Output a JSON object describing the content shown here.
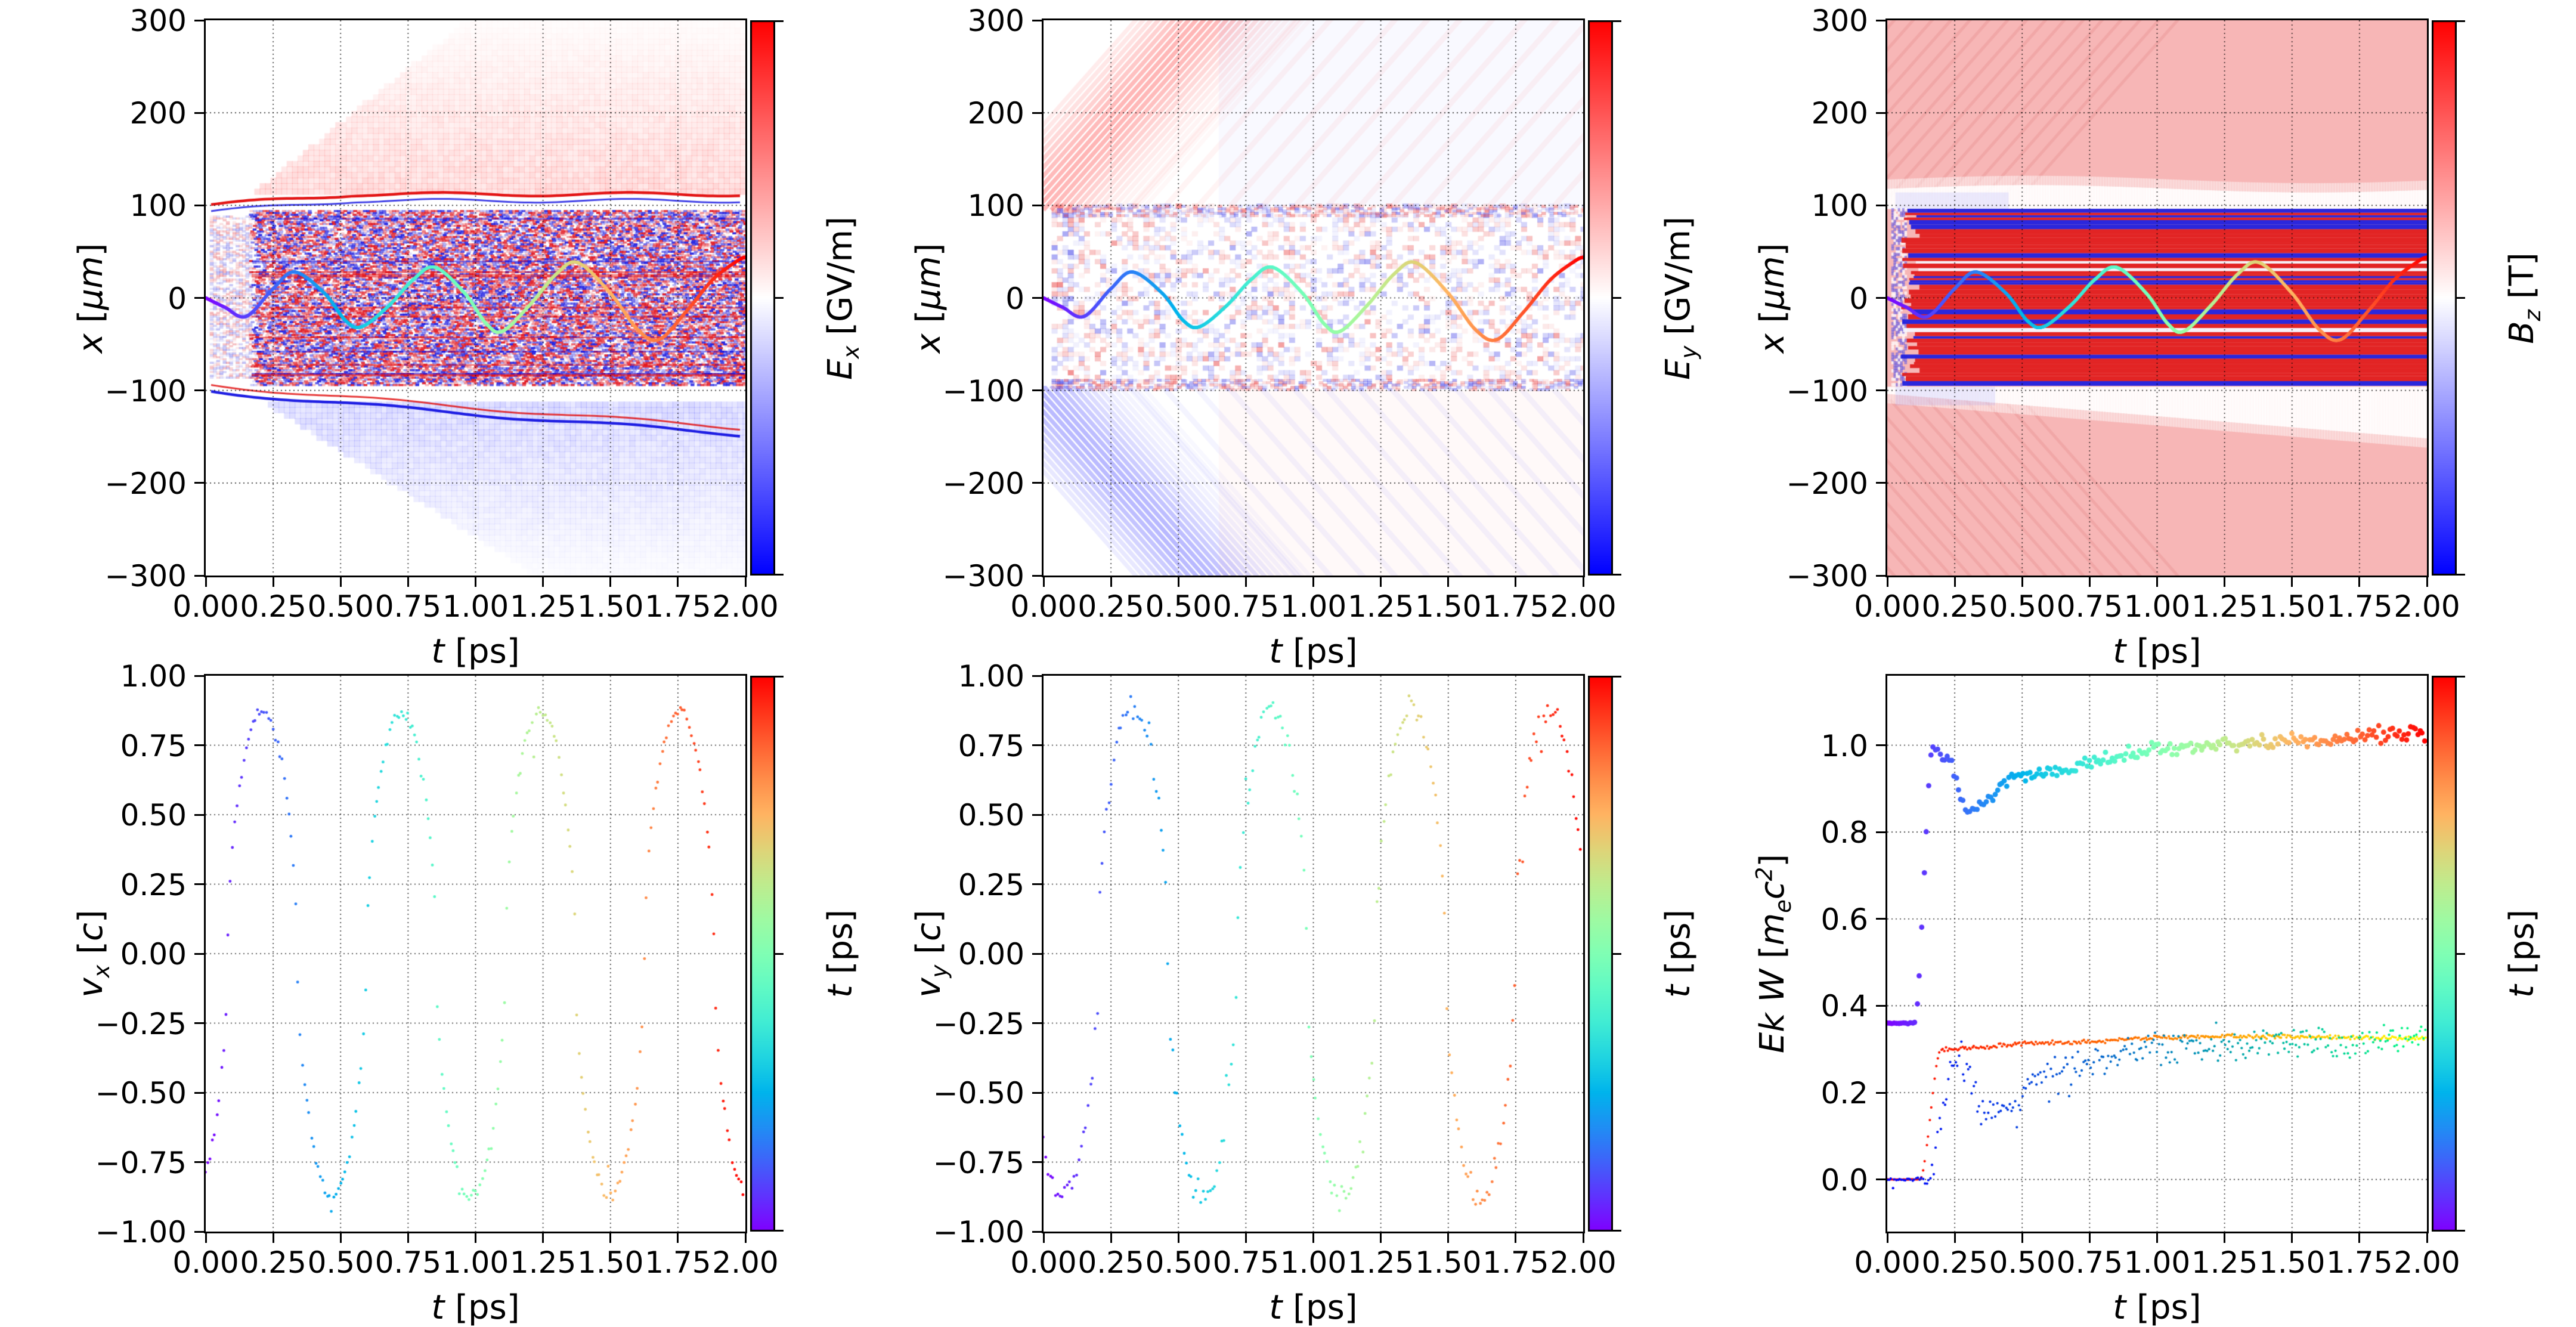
{
  "figure": {
    "kind": "multi-panel particle-in-cell simulation diagnostics figure",
    "background": "#ffffff",
    "layout": "2 rows x 3 columns, each panel with a right-hand colorbar",
    "grid_style": "dotted black gridlines on all panels"
  },
  "colormaps": {
    "bwr": {
      "low": "#0000ff",
      "mid": "#ffffff",
      "high": "#ff0000",
      "used_for": "field maps E_x, E_y, B_z"
    },
    "rainbow": {
      "order": "violet, blue, cyan, pale-green, yellow-green, orange, red",
      "used_for": "time colouring t = 0 to 2 ps"
    },
    "autumn": {
      "low": "#ff0000",
      "high": "#ffff00",
      "used_for": "small-dot Ek series 1"
    },
    "winter": {
      "low": "#0000ff",
      "high": "#00ff80",
      "used_for": "small-dot Ek series 2"
    }
  },
  "shared": {
    "xlabel": "$t$  [ps]",
    "xlim": [
      0,
      2
    ],
    "xticks": {
      "values": [
        0,
        0.25,
        0.5,
        0.75,
        1.0,
        1.25,
        1.5,
        1.75,
        2.0
      ],
      "labels": [
        "0.00",
        "0.25",
        "0.50",
        "0.75",
        "1.00",
        "1.25",
        "1.50",
        "1.75",
        "2.00"
      ]
    },
    "trajectory": {
      "description": "tracked electron transverse position x(t), polyline coloured by rainbow(t/2)",
      "t_ps": [
        0,
        0.07,
        0.15,
        0.25,
        0.33,
        0.44,
        0.52,
        0.58,
        0.68,
        0.77,
        0.85,
        0.96,
        1.04,
        1.1,
        1.2,
        1.3,
        1.38,
        1.5,
        1.6,
        1.68,
        1.78,
        1.88,
        1.97,
        2.0
      ],
      "x_um": [
        0,
        -10,
        -20,
        10,
        28,
        5,
        -25,
        -31,
        -8,
        20,
        33,
        5,
        -28,
        -36,
        -8,
        26,
        38,
        5,
        -34,
        -45,
        -15,
        20,
        40,
        44
      ]
    }
  },
  "chart_data": [
    {
      "id": "ex",
      "name": "subplot-Ex-field-map",
      "type": "heatmap",
      "painter": "field_ex",
      "ylabel": "$x$  [$μm$]",
      "ylim": [
        -300,
        300
      ],
      "yticks": {
        "values": [
          300,
          200,
          100,
          0,
          -100,
          -200,
          -300
        ],
        "labels": [
          "300",
          "200",
          "100",
          "0",
          "−100",
          "−200",
          "−300"
        ]
      },
      "colorbar": {
        "label": "$E_{x}$  [GV/m]",
        "colormap": "bwr"
      },
      "content": {
        "plasma_channel": {
          "x_um": [
            -95,
            95
          ],
          "dense_from_t_ps": 0.17,
          "faint_precursor_t_ps": [
            0.02,
            0.17
          ],
          "texture": "dense horizontal red/blue speckle of the laser field inside the channel"
        },
        "upper_boundary": {
          "ridge": "red line at x=100 rising to about 112 by t=0.55 then flat",
          "underside": "thin blue line"
        },
        "lower_boundary": {
          "ridge": "blue line from x=-100 drifting to -148 at t=2",
          "topside": "thin red line"
        },
        "upper_wedge": {
          "tint": "faint red",
          "front_slope_um_per_ps": 235,
          "start_t_ps": 0.12
        },
        "lower_wedge": {
          "tint": "faint blue",
          "front_slope_um_per_ps": -185,
          "start_t_ps": 0.15
        }
      }
    },
    {
      "id": "ey",
      "name": "subplot-Ey-field-map",
      "type": "heatmap",
      "painter": "field_ey",
      "ylabel": "$x$  [$μm$]",
      "ylim": [
        -300,
        300
      ],
      "yticks": {
        "values": [
          300,
          200,
          100,
          0,
          -100,
          -200,
          -300
        ],
        "labels": [
          "300",
          "200",
          "100",
          "0",
          "−100",
          "−200",
          "−300"
        ]
      },
      "colorbar": {
        "label": "$E_{y}$  [GV/m]",
        "colormap": "bwr"
      },
      "content": {
        "plasma_channel": {
          "x_um": [
            -98,
            98
          ],
          "texture": "sparse coarse red/blue mottle"
        },
        "upper_fan": {
          "tint": "red diagonal stripes",
          "slope_um_per_ps": 330,
          "origin": "x=95 near t=0"
        },
        "lower_fan": {
          "tint": "blue diagonal stripes",
          "slope_um_per_ps": -330
        },
        "late_haze": "very faint blue above / red below the channel for t>0.6"
      }
    },
    {
      "id": "bz",
      "name": "subplot-Bz-field-map",
      "type": "heatmap",
      "painter": "field_bz",
      "ylabel": "$x$  [$μm$]",
      "ylim": [
        -300,
        300
      ],
      "yticks": {
        "values": [
          300,
          200,
          100,
          0,
          -100,
          -200,
          -300
        ],
        "labels": [
          "300",
          "200",
          "100",
          "0",
          "−100",
          "−200",
          "−300"
        ]
      },
      "colorbar": {
        "label": "$B_{z}$  [T]",
        "colormap": "bwr"
      },
      "content": {
        "background": "#f7b6b6 uniform light red (positive Bz everywhere)",
        "plasma_channel": {
          "x_um": [
            -95,
            95
          ],
          "texture": "saturated alternating horizontal red/blue stripes from t=0.05 to 2"
        },
        "white_band_top": {
          "x_um": [
            96,
            120
          ]
        },
        "white_band_bottom": {
          "x_um_start": [
            -104,
            -96
          ],
          "lower_edge_um_at_t2": -152
        },
        "corner_texture": "faint darker-pink diagonals in upper-left and lower-left corners"
      }
    },
    {
      "id": "vx",
      "name": "subplot-vx-scatter",
      "type": "scatter",
      "painter": "scatter_v",
      "ylabel": "$v_{x}$ [$c$]",
      "ylim": [
        -1,
        1
      ],
      "yticks": {
        "values": [
          1.0,
          0.75,
          0.5,
          0.25,
          0.0,
          -0.25,
          -0.5,
          -0.75,
          -1.0
        ],
        "labels": [
          "1.00",
          "0.75",
          "0.50",
          "0.25",
          "0.00",
          "−0.25",
          "−0.50",
          "−0.75",
          "−1.00"
        ]
      },
      "colorbar": {
        "label": "$t$  [ps]",
        "colormap": "rainbow"
      },
      "series": {
        "amplitude_c": 0.87,
        "period_ps": 0.515,
        "form": "cos",
        "peak_t_ps": 0.21,
        "shape_exponent": 0.55,
        "noise_c": 0.025,
        "outlier_fraction": 0.05,
        "n_points": 240,
        "dot_color": "rainbow(t/2)",
        "note": "v_x(0) is about -0.7 and rising; flattened arches at +-0.87"
      }
    },
    {
      "id": "vy",
      "name": "subplot-vy-scatter",
      "type": "scatter",
      "painter": "scatter_v",
      "ylabel": "$v_{y}$ [$c$]",
      "ylim": [
        -1,
        1
      ],
      "yticks": {
        "values": [
          1.0,
          0.75,
          0.5,
          0.25,
          0.0,
          -0.25,
          -0.5,
          -0.75,
          -1.0
        ],
        "labels": [
          "1.00",
          "0.75",
          "0.50",
          "0.25",
          "0.00",
          "−0.25",
          "−0.50",
          "−0.75",
          "−1.00"
        ]
      },
      "colorbar": {
        "label": "$t$  [ps]",
        "colormap": "rainbow"
      },
      "series": {
        "amplitude_c": 0.88,
        "period_ps": 0.515,
        "form": "negsin",
        "phase_shift_ps": 0.055,
        "shape_exponent": 0.55,
        "noise_c": 0.05,
        "outlier_fraction": 0.09,
        "n_points": 230,
        "dot_color": "rainbow(t/2)",
        "note": "v_y(0) is near 0 falling to -0.8 at t=0.1; peaks near t=0.33,0.85,1.36,1.88"
      }
    },
    {
      "id": "ekw",
      "name": "subplot-energy-scatter",
      "type": "scatter",
      "painter": "energy",
      "ylabel": "$Ek$ $W$ [$m_{e}c^{2}$]",
      "ylim": [
        -0.12,
        1.16
      ],
      "yticks": {
        "values": [
          1.0,
          0.8,
          0.6,
          0.4,
          0.2,
          0.0
        ],
        "labels": [
          "1.0",
          "0.8",
          "0.6",
          "0.4",
          "0.2",
          "0.0"
        ]
      },
      "colorbar": {
        "label": "$t$  [ps]",
        "colormap": "rainbow"
      },
      "series": [
        {
          "name": "W-big-dots",
          "dot": "large",
          "color": "rainbow(t/2)",
          "keyframes_t_value": [
            [
              0,
              0.36
            ],
            [
              0.1,
              0.36
            ],
            [
              0.17,
              0.99
            ],
            [
              0.22,
              0.97
            ],
            [
              0.3,
              0.85
            ],
            [
              0.5,
              0.93
            ],
            [
              1.0,
              0.99
            ],
            [
              1.5,
              1.01
            ],
            [
              2.0,
              1.03
            ]
          ],
          "noise": 0.022,
          "n_points": 235
        },
        {
          "name": "Ek-autumn-small-dots",
          "dot": "small",
          "color": "autumn(t/2)",
          "keyframes_t_value": [
            [
              0,
              0.0
            ],
            [
              0.12,
              0.0
            ],
            [
              0.2,
              0.3
            ],
            [
              0.6,
              0.315
            ],
            [
              1.2,
              0.33
            ],
            [
              2.0,
              0.325
            ]
          ],
          "noise": 0.006,
          "n_points": 330
        },
        {
          "name": "Ek-winter-small-dots",
          "dot": "small",
          "color": "winter(t/2)",
          "keyframes_t_value": [
            [
              0,
              0.0
            ],
            [
              0.15,
              0.0
            ],
            [
              0.25,
              0.27
            ],
            [
              0.4,
              0.15
            ],
            [
              0.6,
              0.25
            ],
            [
              1.0,
              0.3
            ],
            [
              2.0,
              0.32
            ]
          ],
          "noise": 0.04,
          "n_points": 300
        }
      ]
    }
  ]
}
